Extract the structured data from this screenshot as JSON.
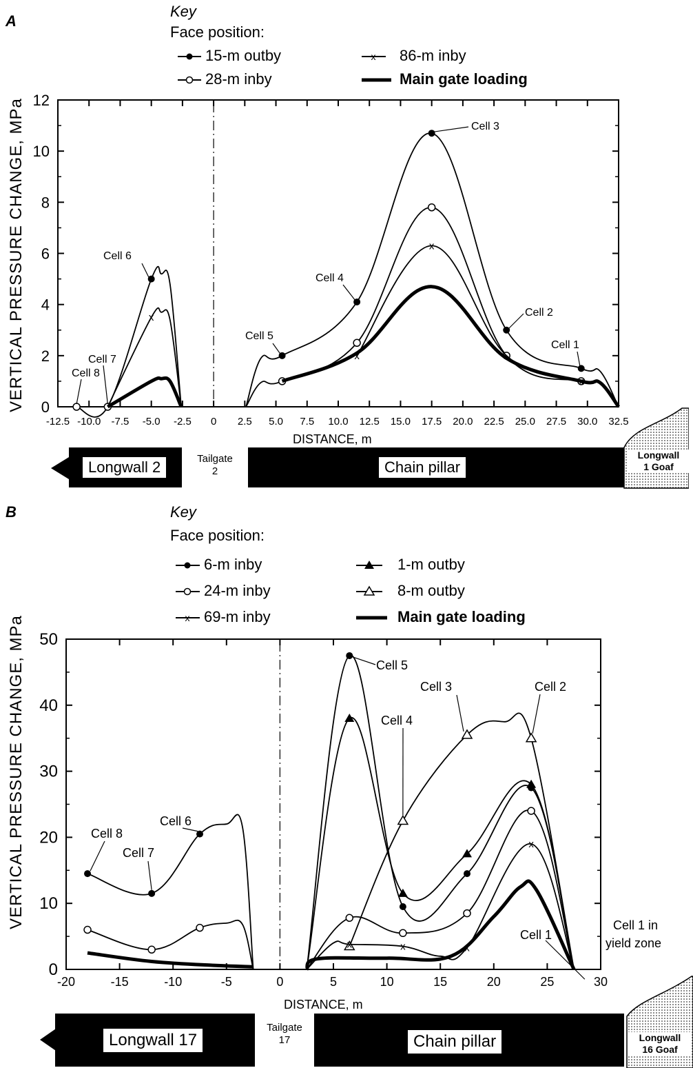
{
  "panel_a": {
    "letter": "A",
    "key": {
      "title": "Key",
      "subtitle": "Face position:",
      "entries": [
        "15-m outby",
        "86-m inby",
        "28-m inby",
        "Main gate loading"
      ]
    },
    "ylabel": "VERTICAL PRESSURE CHANGE, MPa",
    "xlabel": "DISTANCE, m",
    "strip": {
      "left_label": "Longwall 2",
      "tailgate_line1": "Tailgate",
      "tailgate_line2": "2",
      "center_label": "Chain pillar",
      "goaf_line1": "Longwall",
      "goaf_line2": "1 Goaf"
    }
  },
  "panel_b": {
    "letter": "B",
    "key": {
      "title": "Key",
      "subtitle": "Face position:",
      "entries": [
        "6-m inby",
        "1-m outby",
        "24-m inby",
        "8-m outby",
        "69-m inby",
        "Main gate loading"
      ]
    },
    "ylabel": "VERTICAL PRESSURE CHANGE, MPa",
    "xlabel": "DISTANCE, m",
    "strip": {
      "left_label": "Longwall 17",
      "tailgate_line1": "Tailgate",
      "tailgate_line2": "17",
      "center_label": "Chain pillar",
      "goaf_line1": "Longwall",
      "goaf_line2": "16 Goaf"
    }
  },
  "chart_data": [
    {
      "type": "line",
      "xlabel": "DISTANCE, m",
      "ylabel": "VERTICAL PRESSURE CHANGE, MPa",
      "xlim": [
        -12.5,
        32.5
      ],
      "ylim": [
        0,
        12
      ],
      "xticks": [
        -12.5,
        -10.0,
        -7.5,
        -5.0,
        -2.5,
        0,
        2.5,
        5.0,
        7.5,
        10.0,
        12.5,
        15.0,
        17.5,
        20.0,
        22.5,
        25.0,
        27.5,
        30.0,
        32.5
      ],
      "xtick_labels": [
        "-12.5",
        "-10.0",
        "-7.5",
        "-5.0",
        "-2.5",
        "0",
        "2.5",
        "5.0",
        "7.5",
        "10.0",
        "12.5",
        "15.0",
        "17.5",
        "20.0",
        "22.5",
        "25.0",
        "27.5",
        "30.0",
        "32.5"
      ],
      "yticks": [
        0,
        2,
        4,
        6,
        8,
        10,
        12
      ],
      "series": [
        {
          "name": "15-m outby",
          "marker": "filled-circle",
          "weight": "thin",
          "left": [
            [
              -11,
              0
            ],
            [
              -8.5,
              0
            ],
            [
              -5,
              5.0
            ],
            [
              -4.2,
              5.2
            ],
            [
              -3.5,
              4.8
            ],
            [
              -2.6,
              0
            ]
          ],
          "right": [
            [
              2.6,
              0
            ],
            [
              3.8,
              1.9
            ],
            [
              5.5,
              2.0
            ],
            [
              11.5,
              4.1
            ],
            [
              17.5,
              10.7
            ],
            [
              23.5,
              3.0
            ],
            [
              29.5,
              1.5
            ],
            [
              31,
              1.4
            ],
            [
              32.5,
              0
            ]
          ],
          "points": [
            [
              -11,
              0
            ],
            [
              -8.5,
              0
            ],
            [
              -5,
              5.0
            ],
            [
              5.5,
              2.0
            ],
            [
              11.5,
              4.1
            ],
            [
              17.5,
              10.7
            ],
            [
              23.5,
              3.0
            ],
            [
              29.5,
              1.5
            ]
          ]
        },
        {
          "name": "28-m inby",
          "marker": "open-circle",
          "weight": "thin",
          "left": [
            [
              -11,
              0
            ],
            [
              -8.5,
              0
            ]
          ],
          "right": [
            [
              2.6,
              0
            ],
            [
              3.8,
              0.95
            ],
            [
              5.5,
              1.0
            ],
            [
              11.5,
              2.5
            ],
            [
              17.5,
              7.8
            ],
            [
              23.5,
              2.0
            ],
            [
              29.5,
              1.0
            ],
            [
              31,
              0.95
            ],
            [
              32.5,
              0
            ]
          ],
          "points": [
            [
              -11,
              0
            ],
            [
              -8.5,
              0
            ],
            [
              5.5,
              1.0
            ],
            [
              11.5,
              2.5
            ],
            [
              17.5,
              7.8
            ],
            [
              23.5,
              2.0
            ],
            [
              29.5,
              1.0
            ]
          ]
        },
        {
          "name": "86-m inby",
          "marker": "cross",
          "weight": "thin",
          "left": [
            [
              -8.5,
              0
            ],
            [
              -5,
              3.5
            ],
            [
              -4.2,
              3.7
            ],
            [
              -3.5,
              3.4
            ],
            [
              -2.6,
              0
            ]
          ],
          "right": [
            [
              11.5,
              2.0
            ],
            [
              17.5,
              6.3
            ],
            [
              23.5,
              2.0
            ],
            [
              29.5,
              1.0
            ]
          ],
          "points": [
            [
              -5,
              3.5
            ],
            [
              11.5,
              2.0
            ],
            [
              17.5,
              6.3
            ],
            [
              29.5,
              1.0
            ]
          ]
        },
        {
          "name": "Main gate loading",
          "marker": "none",
          "weight": "thick",
          "left": [
            [
              -8.5,
              0
            ],
            [
              -5,
              1.0
            ],
            [
              -4.2,
              1.1
            ],
            [
              -3.5,
              1.0
            ],
            [
              -2.6,
              0
            ]
          ],
          "right": [
            [
              5.5,
              1.0
            ],
            [
              11.5,
              2.1
            ],
            [
              17.5,
              4.7
            ],
            [
              23.5,
              1.9
            ],
            [
              29.5,
              1.0
            ],
            [
              31,
              0.95
            ],
            [
              32.5,
              0
            ]
          ],
          "points": []
        }
      ],
      "annotations": [
        {
          "text": "Cell 1",
          "x": 29.5,
          "y": 1.5
        },
        {
          "text": "Cell 2",
          "x": 23.5,
          "y": 3.0
        },
        {
          "text": "Cell 3",
          "x": 17.5,
          "y": 10.7
        },
        {
          "text": "Cell 4",
          "x": 11.5,
          "y": 4.1
        },
        {
          "text": "Cell 5",
          "x": 5.5,
          "y": 2.0
        },
        {
          "text": "Cell 6",
          "x": -5.0,
          "y": 5.0
        },
        {
          "text": "Cell 7",
          "x": -8.5,
          "y": 0
        },
        {
          "text": "Cell 8",
          "x": -11.0,
          "y": 0
        }
      ]
    },
    {
      "type": "line",
      "xlabel": "DISTANCE, m",
      "ylabel": "VERTICAL PRESSURE CHANGE, MPa",
      "xlim": [
        -20,
        30
      ],
      "ylim": [
        0,
        50
      ],
      "xticks": [
        -20,
        -15,
        -10,
        -5,
        0,
        5,
        10,
        15,
        20,
        25,
        30
      ],
      "xtick_labels": [
        "-20",
        "-15",
        "-10",
        "-5",
        "0",
        "5",
        "10",
        "15",
        "20",
        "25",
        "30"
      ],
      "yticks": [
        0,
        10,
        20,
        30,
        40,
        50
      ],
      "series": [
        {
          "name": "6-m inby",
          "marker": "filled-circle",
          "weight": "thin",
          "left": [
            [
              -18,
              14.5
            ],
            [
              -12,
              11.5
            ],
            [
              -7.5,
              20.5
            ],
            [
              -5,
              22.0
            ],
            [
              -3.5,
              21.5
            ],
            [
              -2.5,
              0
            ]
          ],
          "right": [
            [
              2.5,
              0
            ],
            [
              6.5,
              47.5
            ],
            [
              11.5,
              9.5
            ],
            [
              17.5,
              14.5
            ],
            [
              23.5,
              27.5
            ],
            [
              27.5,
              0
            ]
          ],
          "points": [
            [
              -18,
              14.5
            ],
            [
              -12,
              11.5
            ],
            [
              -7.5,
              20.5
            ],
            [
              6.5,
              47.5
            ],
            [
              11.5,
              9.5
            ],
            [
              17.5,
              14.5
            ],
            [
              23.5,
              27.5
            ]
          ]
        },
        {
          "name": "1-m outby",
          "marker": "filled-triangle",
          "weight": "thin",
          "left": [],
          "right": [
            [
              2.5,
              0
            ],
            [
              6.5,
              38.0
            ],
            [
              11.5,
              11.5
            ],
            [
              17.5,
              17.5
            ],
            [
              23.5,
              28.0
            ],
            [
              27.5,
              0
            ]
          ],
          "points": [
            [
              6.5,
              38.0
            ],
            [
              11.5,
              11.5
            ],
            [
              17.5,
              17.5
            ],
            [
              23.5,
              28.0
            ]
          ]
        },
        {
          "name": "24-m inby",
          "marker": "open-circle",
          "weight": "thin",
          "left": [
            [
              -18,
              6.0
            ],
            [
              -12,
              3.0
            ],
            [
              -7.5,
              6.3
            ],
            [
              -5,
              7.0
            ],
            [
              -3.5,
              6.8
            ],
            [
              -2.5,
              0
            ]
          ],
          "right": [
            [
              2.5,
              0
            ],
            [
              6.5,
              7.8
            ],
            [
              11.5,
              5.5
            ],
            [
              17.5,
              8.5
            ],
            [
              23.5,
              24.0
            ],
            [
              27.5,
              0
            ]
          ],
          "points": [
            [
              -18,
              6.0
            ],
            [
              -12,
              3.0
            ],
            [
              -7.5,
              6.3
            ],
            [
              6.5,
              7.8
            ],
            [
              11.5,
              5.5
            ],
            [
              17.5,
              8.5
            ],
            [
              23.5,
              24.0
            ]
          ]
        },
        {
          "name": "8-m outby",
          "marker": "open-triangle",
          "weight": "thin",
          "left": [],
          "right": [
            [
              6.5,
              3.5
            ],
            [
              11.5,
              22.5
            ],
            [
              17.5,
              35.5
            ],
            [
              21.0,
              37.5
            ],
            [
              23.5,
              35.0
            ],
            [
              27.5,
              0
            ]
          ],
          "points": [
            [
              6.5,
              3.5
            ],
            [
              11.5,
              22.5
            ],
            [
              17.5,
              35.5
            ],
            [
              23.5,
              35.0
            ]
          ]
        },
        {
          "name": "69-m inby",
          "marker": "cross",
          "weight": "thin",
          "left": [],
          "right": [
            [
              2.5,
              0
            ],
            [
              5,
              4.0
            ],
            [
              6.5,
              3.8
            ],
            [
              11.5,
              3.5
            ],
            [
              15,
              2.0
            ],
            [
              17.5,
              3.3
            ],
            [
              23.5,
              19.0
            ],
            [
              27.5,
              0
            ]
          ],
          "points": [
            [
              6.5,
              3.8
            ],
            [
              11.5,
              3.5
            ],
            [
              17.5,
              3.3
            ],
            [
              23.5,
              19.0
            ]
          ]
        },
        {
          "name": "Main gate loading",
          "marker": "none",
          "weight": "thick",
          "left": [
            [
              -18,
              2.5
            ],
            [
              -12,
              1.2
            ],
            [
              -6,
              0.6
            ],
            [
              -2.5,
              0.4
            ]
          ],
          "right": [
            [
              2.5,
              0
            ],
            [
              3.5,
              1.6
            ],
            [
              10,
              1.7
            ],
            [
              16,
              2.0
            ],
            [
              20,
              8.0
            ],
            [
              22.5,
              12.5
            ],
            [
              24,
              12.0
            ],
            [
              27.5,
              0
            ]
          ],
          "points": []
        }
      ],
      "annotations": [
        {
          "text": "Cell 1",
          "x": 24.0,
          "y": 3.0
        },
        {
          "text": "Cell 1 in",
          "x": 30.0,
          "y": 6.0
        },
        {
          "text": "yield zone",
          "x": 30.0,
          "y": 3.0
        },
        {
          "text": "Cell 2",
          "x": 23.5,
          "y": 35.0
        },
        {
          "text": "Cell 3",
          "x": 17.5,
          "y": 35.5
        },
        {
          "text": "Cell 4",
          "x": 11.5,
          "y": 22.5
        },
        {
          "text": "Cell 5",
          "x": 6.5,
          "y": 47.5
        },
        {
          "text": "Cell 6",
          "x": -7.5,
          "y": 20.5
        },
        {
          "text": "Cell 7",
          "x": -12.0,
          "y": 11.5
        },
        {
          "text": "Cell 8",
          "x": -18.0,
          "y": 14.5
        }
      ]
    }
  ]
}
